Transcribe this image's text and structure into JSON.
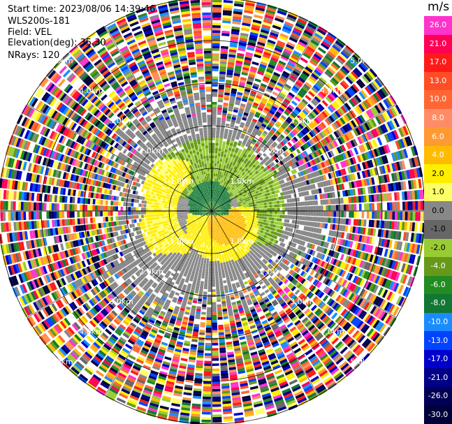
{
  "header": {
    "start_time": "Start time: 2023/08/06 14:39:46",
    "instrument": "WLS200s-181",
    "field": "Field: VEL",
    "elevation": "Elevation(deg): 35.30",
    "nrays": "NRays: 120"
  },
  "chart_data": {
    "type": "heatmap",
    "projection": "polar-ppi",
    "field": "VEL",
    "nrays": 120,
    "elevation_deg": 35.3,
    "range_rings_km": [
      1.0,
      2.0,
      3.0,
      4.0,
      5.0
    ],
    "ring_labels": [
      "1.0km",
      "2.0km",
      "3.0km",
      "4.0km",
      "5.0km"
    ],
    "colorbar": {
      "unit": "m/s",
      "ticks": [
        "26.0",
        "21.0",
        "17.0",
        "13.0",
        "10.0",
        "8.0",
        "6.0",
        "4.0",
        "2.0",
        "1.0",
        "0.0",
        "-1.0",
        "-2.0",
        "-4.0",
        "-6.0",
        "-8.0",
        "-10.0",
        "-13.0",
        "-17.0",
        "-21.0",
        "-26.0",
        "-30.0"
      ],
      "colors": [
        "#ff33cc",
        "#ff0055",
        "#ff1a1a",
        "#ff4d26",
        "#ff6633",
        "#ff8c66",
        "#ff9933",
        "#ffbb00",
        "#ffee00",
        "#ffff66",
        "#888888",
        "#666666",
        "#99cc33",
        "#66991a",
        "#228b22",
        "#117733",
        "#1a8cff",
        "#0044ff",
        "#0000cc",
        "#000088",
        "#000055",
        "#00003a"
      ]
    }
  }
}
